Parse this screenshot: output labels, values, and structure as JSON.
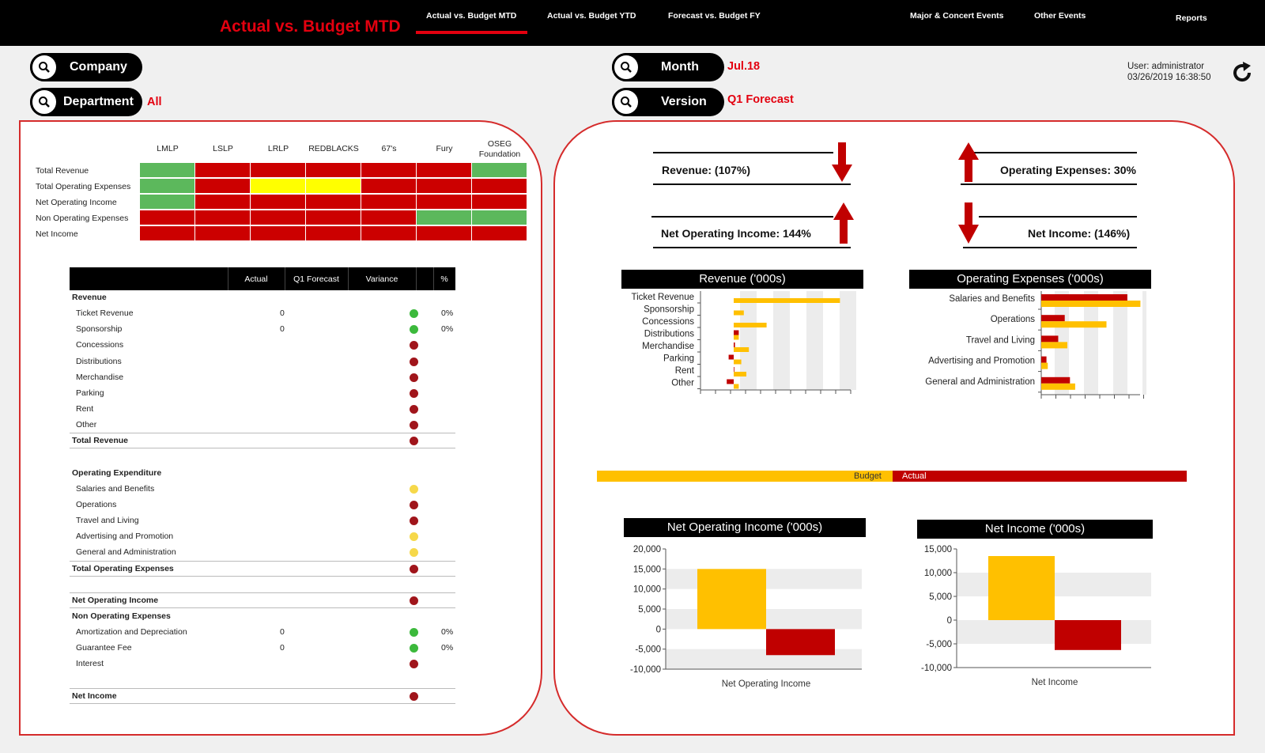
{
  "header": {
    "title": "Actual vs. Budget MTD",
    "nav": [
      "Actual vs. Budget MTD",
      "Actual vs. Budget YTD",
      "Forecast vs. Budget FY",
      "Major & Concert Events",
      "Other Events",
      "Reports"
    ]
  },
  "filters": {
    "company_label": "Company",
    "department_label": "Department",
    "department_value": "All",
    "month_label": "Month",
    "month_value": "Jul.18",
    "version_label": "Version",
    "version_value": "Q1 Forecast"
  },
  "user": {
    "line1": "User: administrator",
    "line2": "03/26/2019 16:38:50"
  },
  "colors": {
    "red": "#cc0000",
    "yellow": "#ffff00",
    "green": "#5cb85c",
    "budget": "#ffc000",
    "actual": "#c00000",
    "dot_red": "#a0151b",
    "dot_green": "#3cb93c",
    "dot_yellow": "#f6d84a"
  },
  "heatmap": {
    "columns": [
      "LMLP",
      "LSLP",
      "LRLP",
      "REDBLACKS",
      "67's",
      "Fury",
      "OSEG Foundation"
    ],
    "rows": [
      {
        "label": "Total Revenue",
        "cells": [
          "green",
          "red",
          "red",
          "red",
          "red",
          "red",
          "green"
        ]
      },
      {
        "label": "Total Operating Expenses",
        "cells": [
          "green",
          "red",
          "yellow",
          "yellow",
          "red",
          "red",
          "red"
        ]
      },
      {
        "label": "Net Operating Income",
        "cells": [
          "green",
          "red",
          "red",
          "red",
          "red",
          "red",
          "red"
        ]
      },
      {
        "label": "Non Operating Expenses",
        "cells": [
          "red",
          "red",
          "red",
          "red",
          "red",
          "green",
          "green"
        ]
      },
      {
        "label": "Net Income",
        "cells": [
          "red",
          "red",
          "red",
          "red",
          "red",
          "red",
          "red"
        ]
      }
    ]
  },
  "table": {
    "headers": [
      "Actual",
      "Q1 Forecast",
      "Variance",
      "%"
    ],
    "rows": [
      {
        "label": "Revenue",
        "bold": true
      },
      {
        "label": "Ticket Revenue",
        "indent": true,
        "actual": "0",
        "dot": "green",
        "pct": "0%"
      },
      {
        "label": "Sponsorship",
        "indent": true,
        "actual": "0",
        "dot": "green",
        "pct": "0%"
      },
      {
        "label": "Concessions",
        "indent": true,
        "dot": "red"
      },
      {
        "label": "Distributions",
        "indent": true,
        "dot": "red"
      },
      {
        "label": "Merchandise",
        "indent": true,
        "dot": "red"
      },
      {
        "label": "Parking",
        "indent": true,
        "dot": "red"
      },
      {
        "label": "Rent",
        "indent": true,
        "dot": "red"
      },
      {
        "label": "Other",
        "indent": true,
        "dot": "red"
      },
      {
        "label": "Total Revenue",
        "bold": true,
        "dot": "red",
        "line": true
      },
      {
        "label": "",
        "gap": true
      },
      {
        "label": "Operating Expenditure",
        "bold": true
      },
      {
        "label": "Salaries and Benefits",
        "indent": true,
        "dot": "yellow"
      },
      {
        "label": "Operations",
        "indent": true,
        "dot": "red"
      },
      {
        "label": "Travel and Living",
        "indent": true,
        "dot": "red"
      },
      {
        "label": "Advertising and Promotion",
        "indent": true,
        "dot": "yellow"
      },
      {
        "label": "General and Administration",
        "indent": true,
        "dot": "yellow"
      },
      {
        "label": "Total Operating Expenses",
        "bold": true,
        "dot": "red",
        "line": true
      },
      {
        "label": "",
        "gap": true
      },
      {
        "label": "Net Operating Income",
        "bold": true,
        "dot": "red",
        "line": true
      },
      {
        "label": "Non Operating Expenses",
        "bold": true
      },
      {
        "label": "Amortization and Depreciation",
        "indent": true,
        "actual": "0",
        "dot": "green",
        "pct": "0%"
      },
      {
        "label": "Guarantee Fee",
        "indent": true,
        "actual": "0",
        "dot": "green",
        "pct": "0%"
      },
      {
        "label": "Interest",
        "indent": true,
        "dot": "red"
      },
      {
        "label": "",
        "gap": true
      },
      {
        "label": "Net Income",
        "bold": true,
        "dot": "red",
        "line": true
      }
    ]
  },
  "kpis": {
    "revenue": "Revenue: (107%)",
    "opex": "Operating Expenses: 30%",
    "noi": "Net Operating Income: 144%",
    "net_income": "Net Income: (146%)"
  },
  "legend": {
    "budget": "Budget",
    "actual": "Actual"
  },
  "chart_data": [
    {
      "type": "bar",
      "orientation": "horizontal",
      "title": "Revenue ('000s)",
      "categories": [
        "Ticket Revenue",
        "Sponsorship",
        "Concessions",
        "Distributions",
        "Merchandise",
        "Parking",
        "Rent",
        "Other"
      ],
      "series": [
        {
          "name": "Actual",
          "values": [
            0,
            0,
            0,
            40,
            10,
            -40,
            5,
            -55
          ]
        },
        {
          "name": "Budget",
          "values": [
            420,
            40,
            130,
            20,
            60,
            30,
            50,
            20
          ]
        }
      ]
    },
    {
      "type": "bar",
      "orientation": "horizontal",
      "title": "Operating Expenses ('000s)",
      "categories": [
        "Salaries and Benefits",
        "Operations",
        "Travel and Living",
        "Advertising and Promotion",
        "General and Administration"
      ],
      "series": [
        {
          "name": "Actual",
          "values": [
            330,
            90,
            65,
            20,
            110
          ]
        },
        {
          "name": "Budget",
          "values": [
            380,
            250,
            100,
            25,
            130
          ]
        }
      ]
    },
    {
      "type": "bar",
      "title": "Net Operating Income ('000s)",
      "xlabel": "Net Operating Income",
      "categories": [
        "Net Operating Income"
      ],
      "series": [
        {
          "name": "Budget",
          "values": [
            15000
          ]
        },
        {
          "name": "Actual",
          "values": [
            -6500
          ]
        }
      ],
      "ylim": [
        -10000,
        20000
      ],
      "yticks": [
        "20,000",
        "15,000",
        "10,000",
        "5,000",
        "0",
        "-5,000",
        "-10,000"
      ]
    },
    {
      "type": "bar",
      "title": "Net Income ('000s)",
      "xlabel": "Net Income",
      "categories": [
        "Net Income"
      ],
      "series": [
        {
          "name": "Budget",
          "values": [
            13500
          ]
        },
        {
          "name": "Actual",
          "values": [
            -6300
          ]
        }
      ],
      "ylim": [
        -10000,
        15000
      ],
      "yticks": [
        "15,000",
        "10,000",
        "5,000",
        "0",
        "-5,000",
        "-10,000"
      ]
    }
  ]
}
